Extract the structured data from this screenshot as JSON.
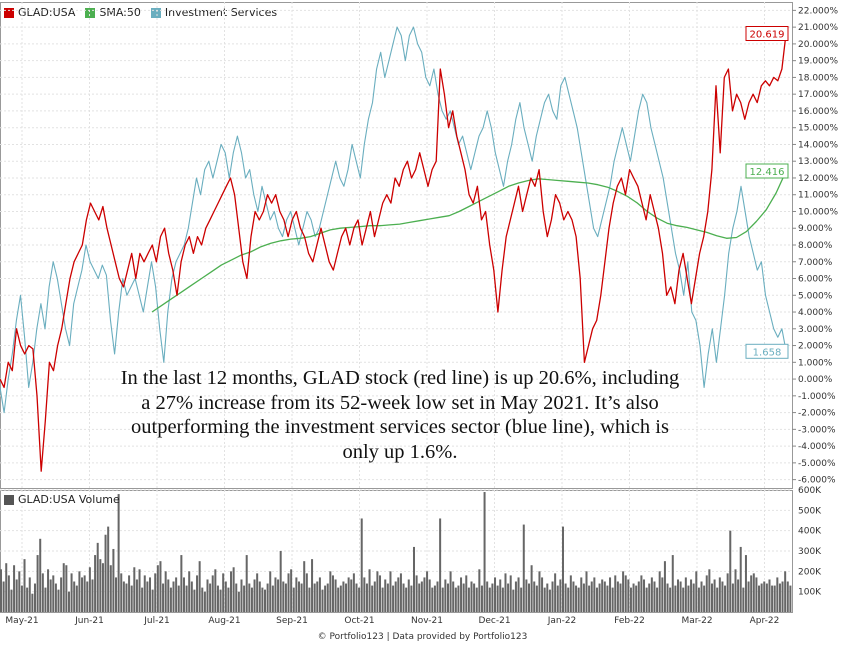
{
  "legend": [
    {
      "label": "GLAD:USA",
      "color": "#cc0000"
    },
    {
      "label": "SMA:50",
      "color": "#4caf50"
    },
    {
      "label": "Investment Services",
      "color": "#6aaebf"
    }
  ],
  "volume_legend": {
    "label": "GLAD:USA Volume",
    "color": "#555555"
  },
  "caption": "In the last 12 months, GLAD stock (red line) is up 20.6%, including a 27% increase from its 52-week low set in May 2021. It’s also outperforming the investment services sector (blue line), which is only up 1.6%.",
  "footer": "© Portfolio123 | Data provided by Portfolio123",
  "chart_data": {
    "type": "line",
    "x_tick_labels": [
      "May-21",
      "Jun-21",
      "Jul-21",
      "Aug-21",
      "Sep-21",
      "Oct-21",
      "Nov-21",
      "Dec-21",
      "Jan-22",
      "Feb-22",
      "Mar-22",
      "Apr-22"
    ],
    "y_tick_labels": [
      "22.000%",
      "21.000%",
      "20.000%",
      "19.000%",
      "18.000%",
      "17.000%",
      "16.000%",
      "15.000%",
      "14.000%",
      "13.000%",
      "12.000%",
      "11.000%",
      "10.000%",
      "9.000%",
      "8.000%",
      "7.000%",
      "6.000%",
      "5.000%",
      "4.000%",
      "3.000%",
      "2.000%",
      "1.000%",
      "0.000%",
      "-1.000%",
      "-2.000%",
      "-3.000%",
      "-4.000%",
      "-5.000%",
      "-6.000%"
    ],
    "ylim": [
      -6.5,
      22.5
    ],
    "volume_tick_labels": [
      "600K",
      "500K",
      "400K",
      "300K",
      "200K",
      "100K"
    ],
    "volume_ylim": [
      0,
      600000
    ],
    "end_labels": [
      {
        "series": "GLAD:USA",
        "text": "20.619",
        "color": "#cc0000"
      },
      {
        "series": "SMA:50",
        "text": "12.416",
        "color": "#4caf50"
      },
      {
        "series": "Investment Services",
        "text": "1.658",
        "color": "#6aaebf"
      }
    ],
    "series": [
      {
        "name": "GLAD:USA",
        "color": "#cc0000",
        "values": [
          0.0,
          -0.5,
          1.0,
          0.5,
          3.0,
          2.0,
          1.5,
          2.0,
          1.8,
          -1.0,
          -5.5,
          -2.5,
          1.0,
          0.5,
          2.0,
          3.0,
          4.5,
          6.0,
          7.0,
          7.5,
          8.0,
          9.5,
          10.5,
          10.0,
          9.5,
          10.3,
          9.0,
          8.0,
          7.0,
          6.0,
          5.5,
          6.5,
          7.5,
          6.0,
          7.5,
          7.0,
          7.5,
          8.0,
          7.0,
          8.5,
          9.0,
          7.5,
          6.5,
          5.0,
          7.0,
          8.0,
          8.5,
          7.5,
          8.5,
          8.0,
          9.0,
          9.5,
          10.0,
          10.5,
          11.0,
          11.5,
          12.0,
          11.0,
          9.0,
          7.0,
          6.0,
          8.5,
          10.0,
          9.5,
          10.0,
          11.0,
          10.5,
          11.0,
          10.0,
          9.5,
          8.5,
          9.5,
          10.0,
          9.0,
          8.5,
          7.5,
          7.0,
          8.0,
          9.0,
          8.0,
          7.0,
          6.5,
          7.5,
          8.5,
          9.0,
          8.0,
          9.0,
          9.5,
          8.0,
          9.0,
          10.0,
          8.5,
          9.5,
          10.5,
          11.0,
          10.5,
          12.0,
          11.5,
          12.5,
          13.0,
          12.0,
          12.5,
          13.5,
          12.5,
          11.5,
          12.5,
          13.0,
          18.5,
          17.0,
          15.0,
          16.0,
          14.5,
          13.5,
          12.5,
          11.0,
          10.5,
          11.5,
          9.5,
          10.0,
          8.0,
          6.5,
          4.0,
          6.5,
          8.5,
          9.5,
          10.5,
          11.5,
          10.0,
          11.0,
          12.0,
          11.5,
          12.5,
          10.0,
          8.5,
          9.5,
          11.0,
          10.5,
          9.5,
          10.0,
          9.5,
          8.5,
          6.0,
          1.0,
          2.0,
          3.0,
          3.5,
          5.0,
          7.0,
          9.0,
          10.5,
          11.5,
          12.0,
          11.0,
          12.5,
          12.0,
          11.5,
          10.5,
          9.5,
          11.0,
          10.0,
          9.0,
          7.5,
          5.0,
          5.5,
          4.5,
          6.5,
          7.5,
          6.0,
          4.5,
          6.0,
          7.5,
          8.5,
          10.0,
          12.5,
          17.5,
          13.5,
          18.0,
          18.5,
          16.0,
          17.0,
          16.5,
          15.5,
          16.5,
          17.0,
          16.5,
          17.5,
          17.8,
          17.5,
          18.0,
          17.8,
          18.5,
          20.6
        ]
      },
      {
        "name": "SMA:50",
        "color": "#4caf50",
        "values": [
          4.0,
          4.4,
          4.8,
          5.2,
          5.6,
          6.0,
          6.4,
          6.8,
          7.1,
          7.4,
          7.6,
          7.9,
          8.1,
          8.25,
          8.35,
          8.4,
          8.5,
          8.7,
          8.9,
          9.0,
          9.05,
          9.1,
          9.15,
          9.15,
          9.2,
          9.25,
          9.35,
          9.45,
          9.55,
          9.65,
          9.75,
          10.0,
          10.3,
          10.6,
          10.9,
          11.2,
          11.5,
          11.7,
          11.85,
          11.95,
          11.9,
          11.85,
          11.8,
          11.75,
          11.7,
          11.6,
          11.45,
          11.2,
          10.9,
          10.5,
          10.0,
          9.6,
          9.3,
          9.15,
          9.05,
          8.9,
          8.75,
          8.55,
          8.4,
          8.45,
          8.8,
          9.4,
          10.1,
          11.1,
          12.4
        ]
      },
      {
        "name": "Investment Services",
        "color": "#6aaebf",
        "values": [
          -0.5,
          -2.0,
          0.0,
          1.5,
          3.5,
          5.0,
          2.5,
          -0.5,
          1.0,
          3.0,
          4.5,
          3.0,
          5.5,
          7.0,
          6.0,
          4.5,
          3.0,
          2.0,
          4.5,
          5.5,
          6.5,
          8.0,
          7.0,
          6.5,
          6.0,
          6.8,
          6.2,
          3.5,
          1.5,
          4.0,
          6.0,
          5.0,
          5.5,
          6.0,
          5.0,
          4.0,
          5.5,
          7.0,
          5.5,
          3.0,
          1.0,
          4.0,
          6.0,
          7.0,
          7.5,
          8.0,
          9.0,
          10.5,
          12.0,
          11.0,
          12.5,
          13.0,
          12.0,
          13.0,
          14.0,
          13.5,
          12.0,
          13.5,
          14.5,
          13.5,
          12.0,
          12.5,
          11.0,
          10.0,
          11.5,
          10.5,
          9.5,
          10.0,
          9.0,
          8.5,
          9.5,
          10.0,
          9.0,
          8.0,
          9.0,
          10.0,
          9.5,
          8.5,
          9.0,
          10.0,
          11.0,
          12.0,
          13.0,
          12.0,
          11.5,
          12.5,
          14.0,
          13.0,
          12.0,
          14.0,
          15.5,
          16.5,
          18.5,
          19.5,
          18.0,
          19.0,
          20.0,
          21.0,
          20.5,
          19.0,
          20.5,
          21.0,
          20.0,
          19.5,
          18.0,
          17.5,
          18.5,
          17.0,
          16.0,
          15.5,
          16.0,
          15.0,
          14.0,
          14.5,
          13.5,
          12.5,
          13.5,
          14.5,
          15.0,
          16.0,
          15.0,
          13.5,
          12.5,
          11.5,
          13.0,
          14.0,
          15.5,
          16.5,
          15.0,
          14.0,
          13.0,
          14.5,
          15.5,
          16.5,
          17.0,
          16.0,
          15.5,
          17.5,
          18.0,
          17.0,
          16.0,
          15.0,
          13.5,
          12.0,
          10.5,
          9.0,
          8.5,
          9.5,
          10.5,
          11.5,
          13.0,
          14.0,
          15.0,
          14.0,
          13.0,
          14.5,
          16.0,
          17.0,
          16.5,
          15.0,
          14.0,
          13.0,
          12.0,
          10.5,
          9.0,
          7.5,
          6.5,
          5.0,
          7.0,
          4.0,
          3.5,
          2.0,
          -0.5,
          1.5,
          3.0,
          1.0,
          3.0,
          5.0,
          7.5,
          9.0,
          10.0,
          11.5,
          10.0,
          8.5,
          7.5,
          6.5,
          7.0,
          5.0,
          4.0,
          3.0,
          2.5,
          3.0,
          1.7
        ]
      }
    ],
    "volume": [
      210,
      150,
      240,
      180,
      110,
      230,
      160,
      200,
      130,
      260,
      120,
      170,
      90,
      140,
      280,
      360,
      190,
      120,
      210,
      160,
      180,
      140,
      110,
      170,
      240,
      230,
      100,
      190,
      150,
      130,
      200,
      170,
      180,
      150,
      220,
      160,
      280,
      340,
      260,
      240,
      380,
      420,
      230,
      310,
      170,
      580,
      190,
      150,
      140,
      180,
      130,
      220,
      160,
      210,
      120,
      180,
      150,
      170,
      110,
      190,
      230,
      250,
      140,
      200,
      160,
      120,
      150,
      170,
      130,
      280,
      170,
      130,
      200,
      150,
      110,
      180,
      250,
      120,
      100,
      160,
      140,
      180,
      210,
      130,
      110,
      190,
      150,
      120,
      200,
      220,
      140,
      100,
      160,
      130,
      280,
      140,
      120,
      160,
      190,
      150,
      120,
      110,
      140,
      200,
      130,
      170,
      160,
      300,
      150,
      140,
      190,
      210,
      120,
      170,
      150,
      140,
      250,
      190,
      120,
      260,
      140,
      150,
      170,
      110,
      130,
      140,
      200,
      180,
      160,
      120,
      130,
      150,
      140,
      170,
      160,
      190,
      140,
      120,
      460,
      170,
      140,
      210,
      130,
      150,
      200,
      180,
      120,
      160,
      140,
      200,
      130,
      150,
      170,
      190,
      140,
      120,
      160,
      130,
      320,
      180,
      140,
      150,
      170,
      200,
      160,
      120,
      130,
      150,
      460,
      120,
      160,
      140,
      200,
      150,
      120,
      130,
      170,
      140,
      180,
      120,
      150,
      140,
      120,
      210,
      130,
      590,
      150,
      120,
      140,
      170,
      130,
      160,
      120,
      190,
      140,
      180,
      110,
      150,
      170,
      120,
      430,
      160,
      140,
      230,
      150,
      130,
      200,
      170,
      120,
      140,
      110,
      150,
      190,
      130,
      160,
      420,
      140,
      120,
      180,
      150,
      130,
      120,
      170,
      140,
      200,
      130,
      150,
      170,
      120,
      140,
      160,
      150,
      130,
      170,
      120,
      180,
      150,
      140,
      200,
      180,
      160,
      120,
      140,
      130,
      150,
      180,
      160,
      120,
      140,
      170,
      150,
      120,
      200,
      170,
      250,
      140,
      120,
      280,
      130,
      160,
      150,
      120,
      170,
      130,
      160,
      140,
      200,
      120,
      150,
      130,
      180,
      210,
      140,
      160,
      120,
      170,
      150,
      130,
      190,
      400,
      140,
      210,
      160,
      320,
      120,
      280,
      150,
      180,
      190,
      170,
      130,
      140,
      150,
      140,
      160,
      130,
      130,
      170,
      140,
      150,
      200,
      150,
      130
    ]
  }
}
